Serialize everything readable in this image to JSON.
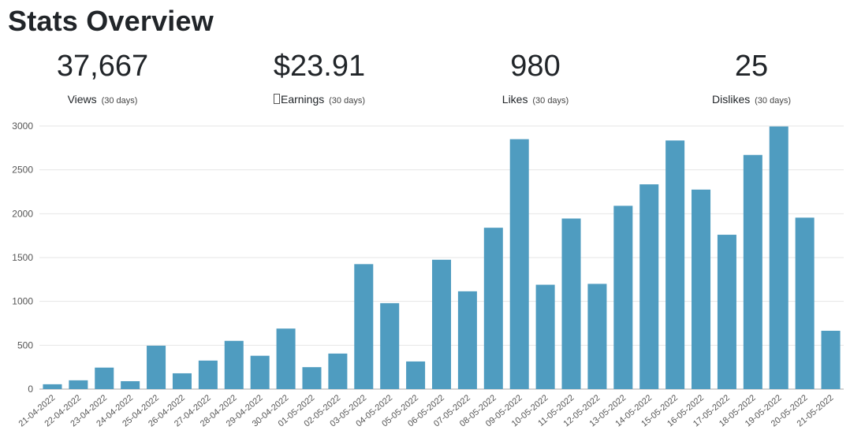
{
  "page": {
    "title": "Stats Overview"
  },
  "stats": [
    {
      "value": "37,667",
      "label": "Views",
      "period": "(30 days)",
      "icon": ""
    },
    {
      "value": "$23.91",
      "label": "Earnings",
      "period": "(30 days)",
      "icon": "missing-glyph-icon"
    },
    {
      "value": "980",
      "label": "Likes",
      "period": "(30 days)",
      "icon": ""
    },
    {
      "value": "25",
      "label": "Dislikes",
      "period": "(30 days)",
      "icon": ""
    }
  ],
  "colors": {
    "bar": "#4f9cc0",
    "grid": "#e6e6e6",
    "axis": "#aaaaaa",
    "text": "#555555"
  },
  "chart_data": {
    "type": "bar",
    "title": "",
    "xlabel": "",
    "ylabel": "",
    "ylim": [
      0,
      3000
    ],
    "yticks": [
      0,
      500,
      1000,
      1500,
      2000,
      2500,
      3000
    ],
    "grid": true,
    "categories": [
      "21-04-2022",
      "22-04-2022",
      "23-04-2022",
      "24-04-2022",
      "25-04-2022",
      "26-04-2022",
      "27-04-2022",
      "28-04-2022",
      "29-04-2022",
      "30-04-2022",
      "01-05-2022",
      "02-05-2022",
      "03-05-2022",
      "04-05-2022",
      "05-05-2022",
      "06-05-2022",
      "07-05-2022",
      "08-05-2022",
      "09-05-2022",
      "10-05-2022",
      "11-05-2022",
      "12-05-2022",
      "13-05-2022",
      "14-05-2022",
      "15-05-2022",
      "16-05-2022",
      "17-05-2022",
      "18-05-2022",
      "19-05-2022",
      "20-05-2022",
      "21-05-2022"
    ],
    "values": [
      55,
      100,
      245,
      90,
      495,
      180,
      325,
      550,
      380,
      690,
      250,
      405,
      1425,
      980,
      315,
      1475,
      1115,
      1840,
      2850,
      1190,
      1945,
      1200,
      2090,
      2335,
      2835,
      2275,
      1760,
      2670,
      2995,
      1955,
      665
    ]
  }
}
